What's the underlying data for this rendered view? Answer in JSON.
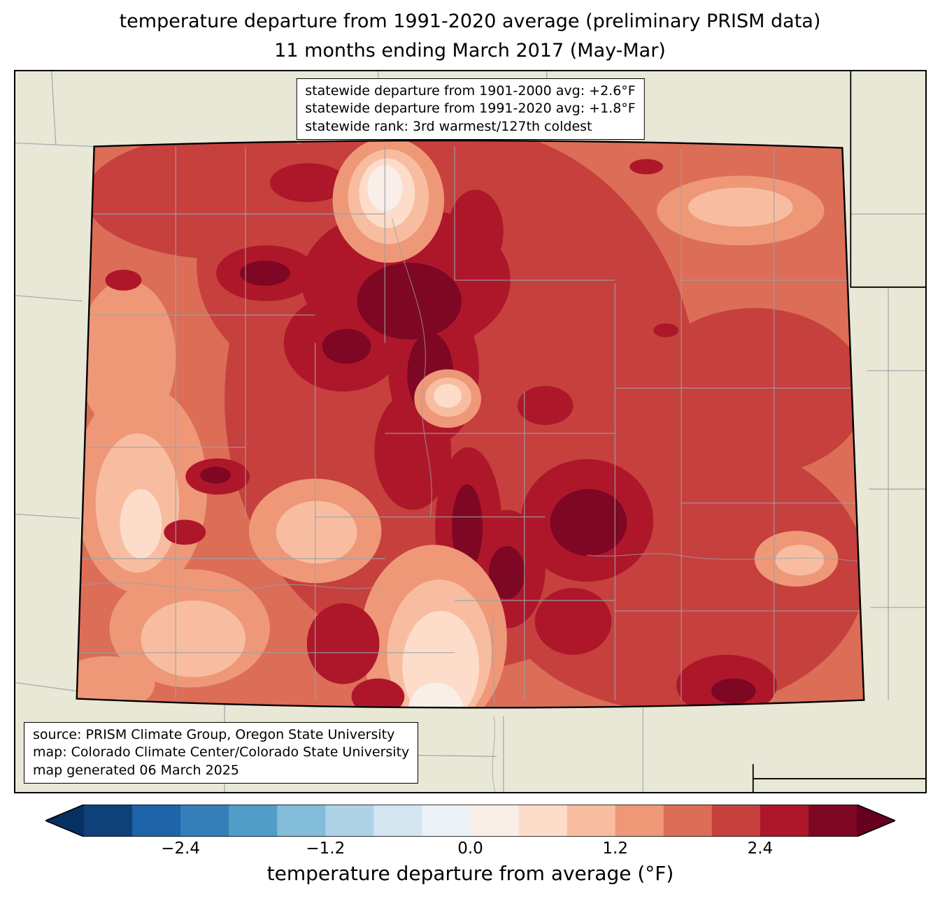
{
  "title": {
    "line1": "temperature departure from 1991-2020 average (preliminary PRISM data)",
    "line2": "11 months ending March 2017 (May-Mar)"
  },
  "stats_box": {
    "lines": [
      "statewide departure from 1901-2000 avg: +2.6°F",
      "statewide departure from 1991-2020 avg: +1.8°F",
      "statewide rank: 3rd warmest/127th coldest"
    ]
  },
  "source_box": {
    "lines": [
      "source: PRISM Climate Group, Oregon State University",
      "map: Colorado Climate Center/Colorado State University",
      "map generated 06 March 2025"
    ]
  },
  "colorbar": {
    "label": "temperature departure from average (°F)",
    "range": [
      -3.2,
      3.2
    ],
    "ticks": [
      {
        "value": -2.4,
        "label": "−2.4"
      },
      {
        "value": -1.2,
        "label": "−1.2"
      },
      {
        "value": 0.0,
        "label": "0.0"
      },
      {
        "value": 1.2,
        "label": "1.2"
      },
      {
        "value": 2.4,
        "label": "2.4"
      }
    ],
    "segments": [
      "#0e4178",
      "#1f63a8",
      "#347fb9",
      "#529cc8",
      "#83bcd9",
      "#aed3e6",
      "#d3e6f0",
      "#ebf1f5",
      "#f9eee8",
      "#fdddca",
      "#f8bda0",
      "#ee9878",
      "#dc6d57",
      "#c6403e",
      "#ae172a",
      "#7e0723"
    ],
    "arrow_low": "#053061",
    "arrow_high": "#67001f"
  },
  "map": {
    "region": "Colorado",
    "colors": {
      "land": "#e9e7d6",
      "county_line": "#9aa1a8",
      "state_line": "#000000"
    }
  },
  "chart_data": {
    "type": "heatmap",
    "title": "temperature departure from 1991-2020 average (preliminary PRISM data) — 11 months ending March 2017 (May-Mar)",
    "region": "Colorado",
    "variable": "temperature departure from average (°F)",
    "colorbar_range": [
      -3.2,
      3.2
    ],
    "colorbar_ticks": [
      -2.4,
      -1.2,
      0.0,
      1.2,
      2.4
    ],
    "statewide_departure_from_1901_2000_avg_F": "+2.6",
    "statewide_departure_from_1991_2020_avg_F": "+1.8",
    "statewide_rank": "3rd warmest/127th coldest",
    "source": "PRISM Climate Group, Oregon State University",
    "map_credit": "Colorado Climate Center/Colorado State University",
    "map_generated": "06 March 2025"
  }
}
